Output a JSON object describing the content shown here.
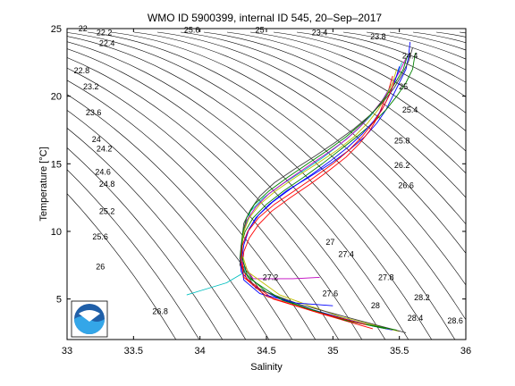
{
  "chart_data": {
    "type": "line",
    "title": "WMO ID 5900399, internal ID 545, 20–Sep–2017",
    "xlabel": "Salinity",
    "ylabel": "Temperature [°C]",
    "xlim": [
      33,
      36
    ],
    "ylim": [
      2,
      25
    ],
    "xticks": [
      33,
      33.5,
      34,
      34.5,
      35,
      35.5,
      36
    ],
    "yticks": [
      5,
      10,
      15,
      20,
      25
    ],
    "grid": false,
    "isopycnal_labels": [
      {
        "text": "22",
        "s": 33.12,
        "t": 24.8
      },
      {
        "text": "22.2",
        "s": 33.28,
        "t": 24.5
      },
      {
        "text": "22.4",
        "s": 33.3,
        "t": 23.7
      },
      {
        "text": "22.8",
        "s": 33.11,
        "t": 21.7
      },
      {
        "text": "23.2",
        "s": 33.18,
        "t": 20.5
      },
      {
        "text": "23.6",
        "s": 33.2,
        "t": 18.6
      },
      {
        "text": "24",
        "s": 33.22,
        "t": 16.6
      },
      {
        "text": "24.2",
        "s": 33.28,
        "t": 15.9
      },
      {
        "text": "24.6",
        "s": 33.27,
        "t": 14.2
      },
      {
        "text": "24.8",
        "s": 33.3,
        "t": 13.3
      },
      {
        "text": "25.2",
        "s": 33.3,
        "t": 11.3
      },
      {
        "text": "25.6",
        "s": 33.25,
        "t": 9.4
      },
      {
        "text": "26",
        "s": 33.25,
        "t": 7.2
      },
      {
        "text": "26.8",
        "s": 33.7,
        "t": 3.9
      },
      {
        "text": "25.6",
        "s": 33.94,
        "t": 24.7
      },
      {
        "text": "25",
        "s": 34.45,
        "t": 24.7
      },
      {
        "text": "23.4",
        "s": 34.9,
        "t": 24.5
      },
      {
        "text": "23.8",
        "s": 35.34,
        "t": 24.2
      },
      {
        "text": "24.4",
        "s": 35.58,
        "t": 22.8
      },
      {
        "text": "25",
        "s": 35.53,
        "t": 20.5
      },
      {
        "text": "25.4",
        "s": 35.58,
        "t": 18.8
      },
      {
        "text": "25.8",
        "s": 35.52,
        "t": 16.5
      },
      {
        "text": "26.2",
        "s": 35.52,
        "t": 14.7
      },
      {
        "text": "26.6",
        "s": 35.55,
        "t": 13.2
      },
      {
        "text": "27",
        "s": 34.98,
        "t": 9.0
      },
      {
        "text": "27.4",
        "s": 35.1,
        "t": 8.1
      },
      {
        "text": "27.2",
        "s": 34.53,
        "t": 6.4
      },
      {
        "text": "27.8",
        "s": 35.4,
        "t": 6.4
      },
      {
        "text": "27.6",
        "s": 34.98,
        "t": 5.2
      },
      {
        "text": "28.2",
        "s": 35.67,
        "t": 4.9
      },
      {
        "text": "28",
        "s": 35.32,
        "t": 4.3
      },
      {
        "text": "28.4",
        "s": 35.62,
        "t": 3.4
      },
      {
        "text": "28.6",
        "s": 35.92,
        "t": 3.2
      }
    ],
    "series": [
      {
        "values_s": [
          35.58,
          35.57,
          35.55,
          35.5,
          35.45,
          35.4,
          35.33,
          35.24,
          35.12,
          34.98,
          34.82,
          34.65,
          34.52,
          34.42,
          34.36,
          34.32,
          34.3,
          34.31,
          34.4,
          34.6,
          34.85,
          35.1,
          35.3,
          35.45
        ],
        "values_t": [
          24.0,
          23.0,
          22.0,
          21.0,
          20.0,
          19.0,
          18.0,
          17.0,
          16.0,
          15.0,
          14.0,
          13.0,
          12.0,
          11.0,
          10.0,
          9.0,
          8.0,
          7.0,
          6.0,
          5.0,
          4.2,
          3.5,
          3.0,
          2.7
        ]
      },
      {
        "values_s": [
          35.62,
          35.6,
          35.55,
          35.48,
          35.4,
          35.3,
          35.18,
          35.05,
          34.92,
          34.78,
          34.63,
          34.5,
          34.4,
          34.34,
          34.31,
          34.3,
          34.33,
          34.5,
          34.8,
          35.15,
          35.4
        ],
        "values_t": [
          23.2,
          22.0,
          21.0,
          20.0,
          19.0,
          18.0,
          17.0,
          16.0,
          15.0,
          14.0,
          13.0,
          12.0,
          11.0,
          10.0,
          9.0,
          8.0,
          7.0,
          5.5,
          4.3,
          3.3,
          2.8
        ]
      },
      {
        "values_s": [
          35.45,
          35.42,
          35.38,
          35.34,
          35.28,
          35.2,
          35.1,
          34.97,
          34.83,
          34.68,
          34.54,
          34.44,
          34.37,
          34.33,
          34.32,
          34.35,
          34.55,
          34.95,
          35.3
        ],
        "values_t": [
          21.5,
          20.5,
          19.5,
          18.5,
          17.5,
          16.5,
          15.5,
          14.5,
          13.5,
          12.5,
          11.5,
          10.5,
          9.5,
          8.5,
          7.5,
          6.5,
          5.0,
          3.8,
          2.8
        ]
      },
      {
        "values_s": [
          35.52,
          35.48,
          35.42,
          35.36,
          35.28,
          35.18,
          35.06,
          34.93,
          34.78,
          34.62,
          34.48,
          34.38,
          34.33,
          34.31,
          34.34,
          34.2,
          34.0,
          33.9
        ],
        "values_t": [
          22.5,
          21.5,
          20.5,
          19.5,
          18.5,
          17.5,
          16.5,
          15.5,
          14.5,
          13.5,
          12.5,
          11.5,
          10.0,
          8.5,
          7.0,
          6.2,
          5.6,
          5.3
        ]
      },
      {
        "values_s": [
          35.55,
          35.5,
          35.44,
          35.38,
          35.3,
          35.21,
          35.1,
          34.96,
          34.81,
          34.66,
          34.52,
          34.42,
          34.35,
          34.32,
          34.31,
          34.4,
          34.7,
          34.9
        ],
        "values_t": [
          22.8,
          21.8,
          20.8,
          19.8,
          18.8,
          17.8,
          16.8,
          15.8,
          14.8,
          13.8,
          12.8,
          11.8,
          10.8,
          9.5,
          7.8,
          6.5,
          6.5,
          6.6
        ]
      },
      {
        "values_s": [
          35.48,
          35.45,
          35.4,
          35.34,
          35.26,
          35.16,
          35.03,
          34.88,
          34.72,
          34.57,
          34.45,
          34.37,
          34.33,
          34.31,
          34.36,
          34.6,
          35.05,
          35.5
        ],
        "values_t": [
          22.0,
          21.0,
          20.0,
          19.0,
          18.0,
          17.0,
          16.0,
          15.0,
          14.0,
          13.0,
          12.0,
          11.0,
          10.0,
          8.5,
          7.0,
          5.3,
          3.7,
          2.6
        ]
      },
      {
        "values_s": [
          35.6,
          35.57,
          35.52,
          35.46,
          35.38,
          35.28,
          35.16,
          35.02,
          34.87,
          34.71,
          34.56,
          34.45,
          34.38,
          34.33,
          34.31,
          34.3,
          34.42,
          34.75,
          35.2,
          35.55
        ],
        "values_t": [
          23.6,
          22.6,
          21.6,
          20.6,
          19.6,
          18.6,
          17.6,
          16.6,
          15.6,
          14.6,
          13.6,
          12.6,
          11.6,
          10.6,
          9.0,
          7.5,
          5.8,
          4.6,
          3.4,
          2.5
        ]
      },
      {
        "values_s": [
          35.5,
          35.47,
          35.43,
          35.38,
          35.31,
          35.22,
          35.11,
          34.98,
          34.84,
          34.69,
          34.55,
          34.44,
          34.37,
          34.33,
          34.31,
          34.33,
          34.45,
          34.72,
          35.0
        ],
        "values_t": [
          22.2,
          21.2,
          20.2,
          19.2,
          18.2,
          17.2,
          16.2,
          15.2,
          14.2,
          13.2,
          12.2,
          11.2,
          10.2,
          9.0,
          7.6,
          6.4,
          5.4,
          4.7,
          4.5
        ]
      },
      {
        "values_s": [
          35.56,
          35.53,
          35.47,
          35.4,
          35.32,
          35.22,
          35.1,
          34.96,
          34.81,
          34.66,
          34.52,
          34.41,
          34.35,
          34.32,
          34.31,
          34.36,
          34.62,
          35.1,
          35.48
        ],
        "values_t": [
          23.0,
          22.0,
          21.0,
          20.0,
          19.0,
          18.0,
          17.0,
          16.0,
          15.0,
          14.0,
          13.0,
          12.0,
          11.0,
          9.8,
          8.3,
          6.6,
          4.9,
          3.4,
          2.7
        ]
      },
      {
        "values_s": [
          35.46,
          35.42,
          35.37,
          35.3,
          35.22,
          35.12,
          35.0,
          34.86,
          34.71,
          34.56,
          34.44,
          34.36,
          34.32,
          34.31,
          34.33,
          34.5,
          34.85,
          35.25
        ],
        "values_t": [
          21.0,
          20.0,
          19.0,
          18.0,
          17.0,
          16.0,
          15.0,
          14.0,
          13.0,
          12.0,
          11.0,
          10.0,
          9.0,
          7.8,
          6.6,
          5.2,
          4.1,
          3.1
        ]
      }
    ]
  }
}
